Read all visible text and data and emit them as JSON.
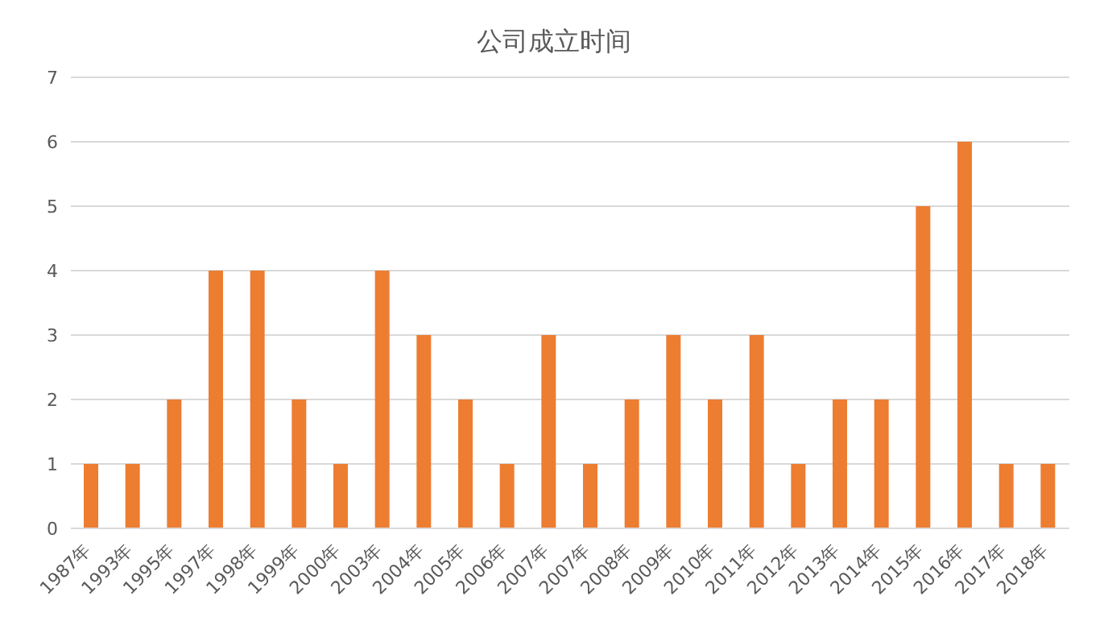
{
  "chart_data": {
    "type": "bar",
    "title": "公司成立时间",
    "categories": [
      "1987年",
      "1993年",
      "1995年",
      "1997年",
      "1998年",
      "1999年",
      "2000年",
      "2003年",
      "2004年",
      "2005年",
      "2006年",
      "2007年",
      "2007年",
      "2008年",
      "2009年",
      "2010年",
      "2011年",
      "2012年",
      "2013年",
      "2014年",
      "2015年",
      "2016年",
      "2017年",
      "2018年"
    ],
    "values": [
      1,
      1,
      2,
      4,
      4,
      2,
      1,
      4,
      3,
      2,
      1,
      3,
      1,
      2,
      3,
      2,
      3,
      1,
      2,
      2,
      5,
      6,
      1,
      1
    ],
    "color": "#ed7d31",
    "ylim": [
      0,
      7
    ],
    "yticks": [
      0,
      1,
      2,
      3,
      4,
      5,
      6,
      7
    ],
    "grid": "y"
  }
}
